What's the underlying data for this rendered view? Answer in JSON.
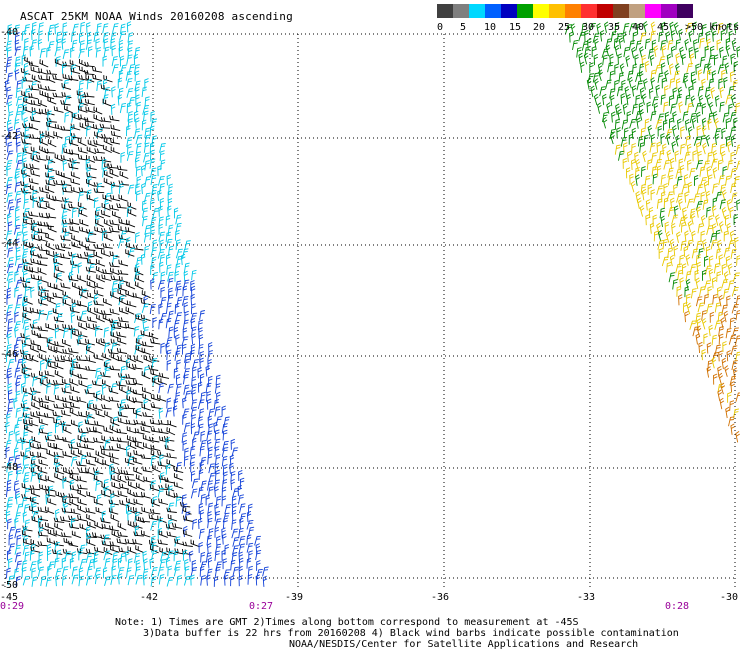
{
  "title": "ASCAT 25KM NOAA Winds 20160208 ascending",
  "speed_scale": {
    "labels": [
      "0",
      "5",
      "10",
      "15",
      "20",
      "25",
      "30",
      "35",
      "40",
      "45",
      ">50 knots"
    ],
    "colors": [
      "#404040",
      "#7f7f7f",
      "#00d8ff",
      "#0060ff",
      "#0000c0",
      "#00a000",
      "#ffff00",
      "#ffc000",
      "#ff8000",
      "#ff3030",
      "#c00000",
      "#804020",
      "#c0a080",
      "#ff00ff",
      "#a000c0",
      "#400060"
    ]
  },
  "axes": {
    "lat_labels": [
      "-40",
      "-42",
      "-44",
      "-46",
      "-48",
      "-50"
    ],
    "lon_labels": [
      "-45",
      "-42",
      "-39",
      "-36",
      "-33",
      "-30"
    ]
  },
  "time_labels": [
    "0:29",
    "0:27",
    "0:28"
  ],
  "notes": [
    "Note: 1) Times are GMT 2)Times along bottom correspond to measurement at -45S",
    "3)Data buffer is 22 hrs from 20160208 4) Black wind barbs indicate possible contamination",
    "NOAA/NESDIS/Center for Satellite Applications and Research"
  ],
  "swaths": [
    {
      "name": "western-swath",
      "colors": [
        "#00c8e8",
        "#1040d8",
        "#000000"
      ]
    },
    {
      "name": "eastern-swath",
      "colors": [
        "#008800",
        "#e8c800",
        "#d07000"
      ]
    }
  ]
}
